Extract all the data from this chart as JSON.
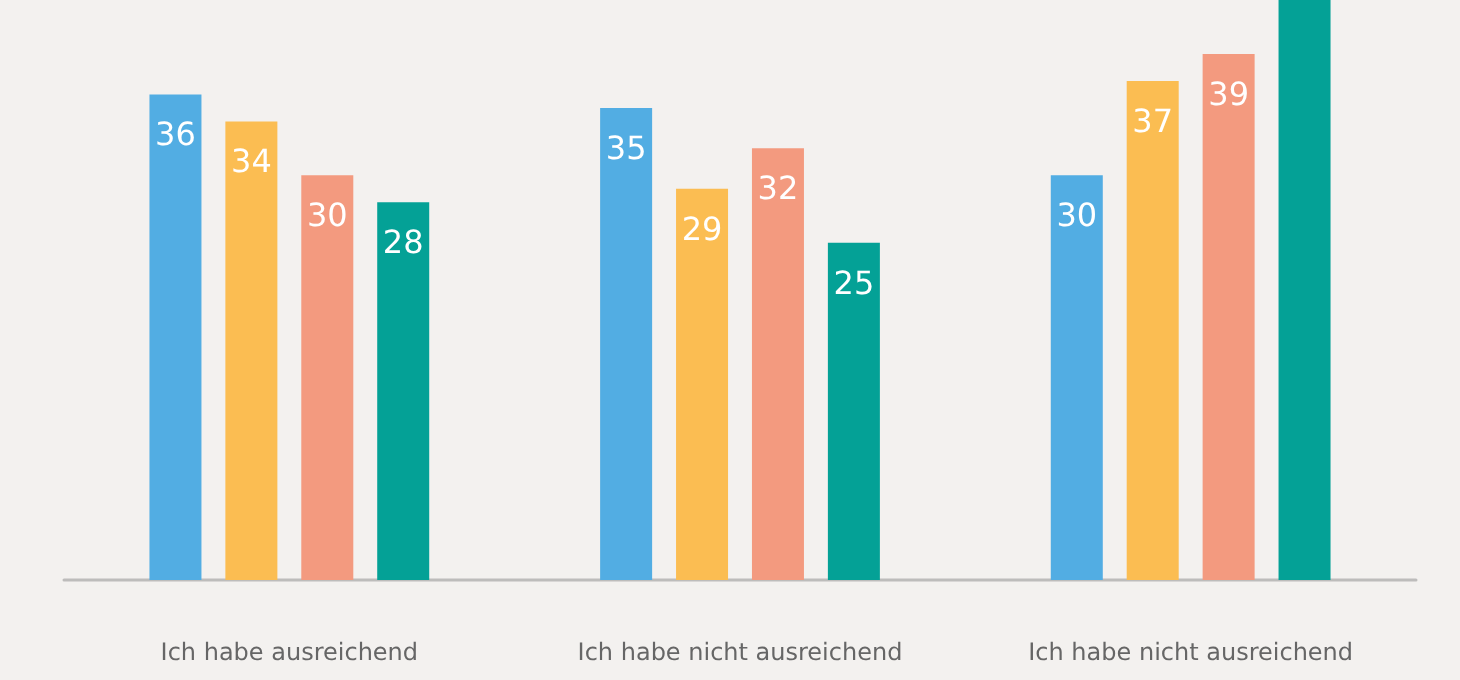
{
  "chart_data": {
    "type": "bar",
    "categories": [
      "Ich habe ausreichend",
      "Ich habe nicht ausreichend",
      "Ich habe nicht ausreichend"
    ],
    "ylim": [
      0,
      43
    ],
    "series": [
      {
        "color": "#52ade3",
        "values": [
          36,
          35,
          30
        ],
        "value_labels": [
          "36",
          "35",
          "30"
        ]
      },
      {
        "color": "#fbbd52",
        "values": [
          34,
          29,
          37
        ],
        "value_labels": [
          "34",
          "29",
          "37"
        ]
      },
      {
        "color": "#f39a7f",
        "values": [
          30,
          32,
          39
        ],
        "value_labels": [
          "30",
          "32",
          "39"
        ]
      },
      {
        "color": "#04a196",
        "values": [
          28,
          25,
          43
        ],
        "value_labels": [
          "28",
          "25",
          null
        ]
      }
    ]
  }
}
